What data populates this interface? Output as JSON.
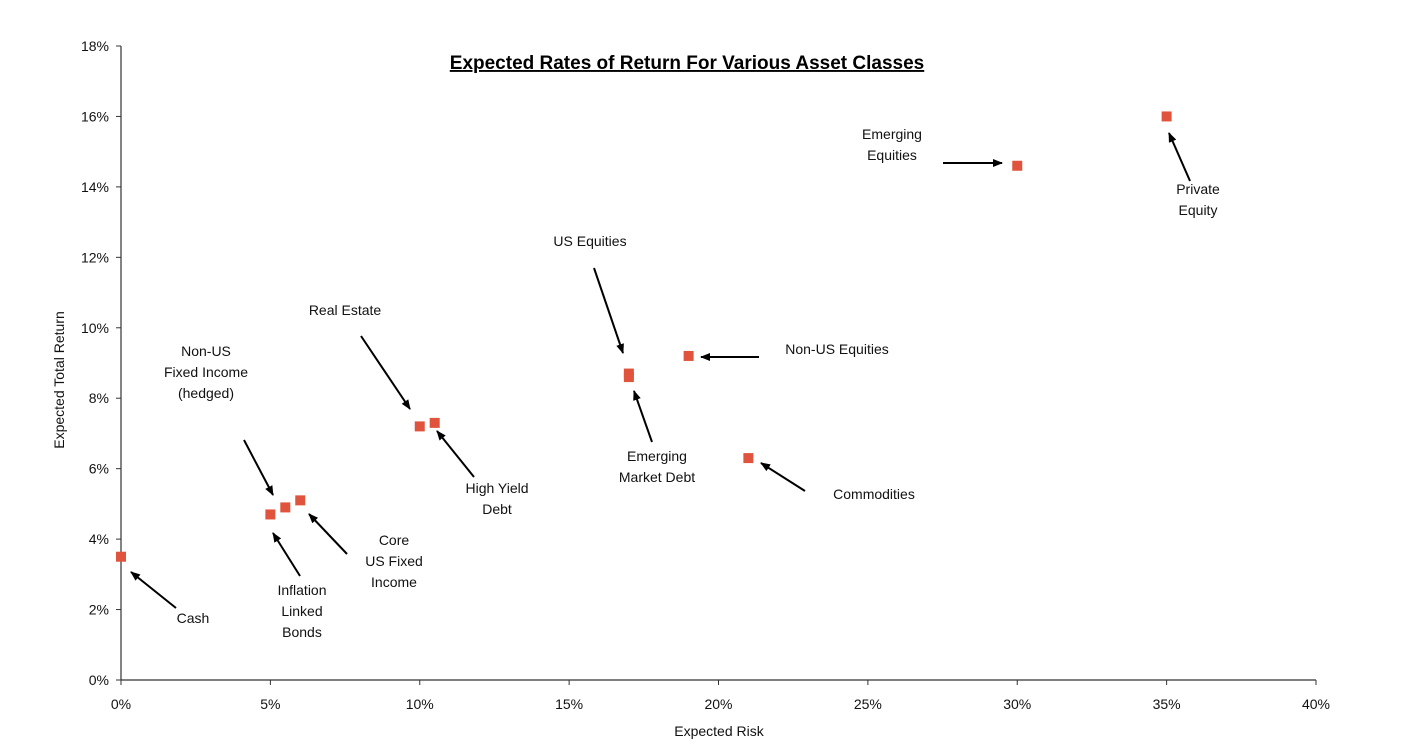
{
  "chart_data": {
    "type": "scatter",
    "title": "Expected Rates of Return For Various Asset Classes",
    "xlabel": "Expected Risk",
    "ylabel": "Expected Total Return",
    "xlim": [
      0,
      40
    ],
    "ylim": [
      0,
      18
    ],
    "x_ticks": [
      0,
      5,
      10,
      15,
      20,
      25,
      30,
      35,
      40
    ],
    "x_tick_labels": [
      "0%",
      "5%",
      "10%",
      "15%",
      "20%",
      "25%",
      "30%",
      "35%",
      "40%"
    ],
    "y_ticks": [
      0,
      2,
      4,
      6,
      8,
      10,
      12,
      14,
      16,
      18
    ],
    "y_tick_labels": [
      "0%",
      "2%",
      "4%",
      "6%",
      "8%",
      "10%",
      "12%",
      "14%",
      "16%",
      "18%"
    ],
    "grid": false,
    "legend": "none",
    "marker_color": "#e0533c",
    "points": [
      {
        "x": 0.0,
        "y": 3.5
      },
      {
        "x": 5.0,
        "y": 4.7
      },
      {
        "x": 5.5,
        "y": 4.9
      },
      {
        "x": 6.0,
        "y": 5.1
      },
      {
        "x": 10.0,
        "y": 7.2
      },
      {
        "x": 10.5,
        "y": 7.3
      },
      {
        "x": 17.0,
        "y": 8.7
      },
      {
        "x": 17.0,
        "y": 8.6
      },
      {
        "x": 19.0,
        "y": 9.2
      },
      {
        "x": 21.0,
        "y": 6.3
      },
      {
        "x": 30.0,
        "y": 14.6
      },
      {
        "x": 35.0,
        "y": 16.0
      }
    ],
    "annotations": [
      {
        "lines": [
          "Cash"
        ]
      },
      {
        "lines": [
          "Inflation",
          "Linked",
          "Bonds"
        ]
      },
      {
        "lines": [
          "Core",
          "US Fixed",
          "Income"
        ]
      },
      {
        "lines": [
          "Non-US",
          "Fixed Income",
          "(hedged)"
        ]
      },
      {
        "lines": [
          "Real Estate"
        ]
      },
      {
        "lines": [
          "High Yield",
          "Debt"
        ]
      },
      {
        "lines": [
          "US Equities"
        ]
      },
      {
        "lines": [
          "Emerging",
          "Market Debt"
        ]
      },
      {
        "lines": [
          "Non-US Equities"
        ]
      },
      {
        "lines": [
          "Commodities"
        ]
      },
      {
        "lines": [
          "Emerging",
          "Equities"
        ]
      },
      {
        "lines": [
          "Private",
          "Equity"
        ]
      }
    ]
  }
}
